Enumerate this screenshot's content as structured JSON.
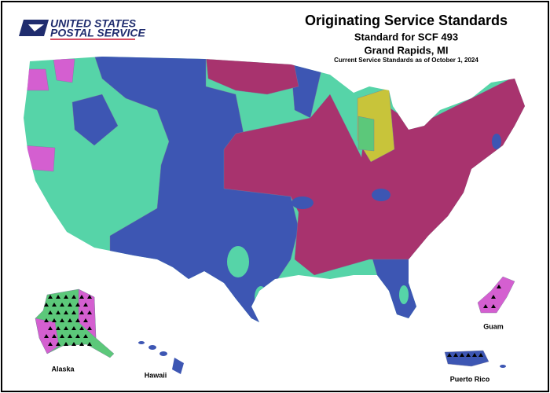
{
  "logo": {
    "line1": "UNITED STATES",
    "line2": "POSTAL SERVICE"
  },
  "header": {
    "title": "Originating Service Standards",
    "subtitle": "Standard for SCF 493",
    "location": "Grand Rapids, MI",
    "note": "Current Service Standards as of October 1, 2024"
  },
  "labels": {
    "alaska": "Alaska",
    "hawaii": "Hawaii",
    "guam": "Guam",
    "puerto_rico": "Puerto Rico"
  }
}
